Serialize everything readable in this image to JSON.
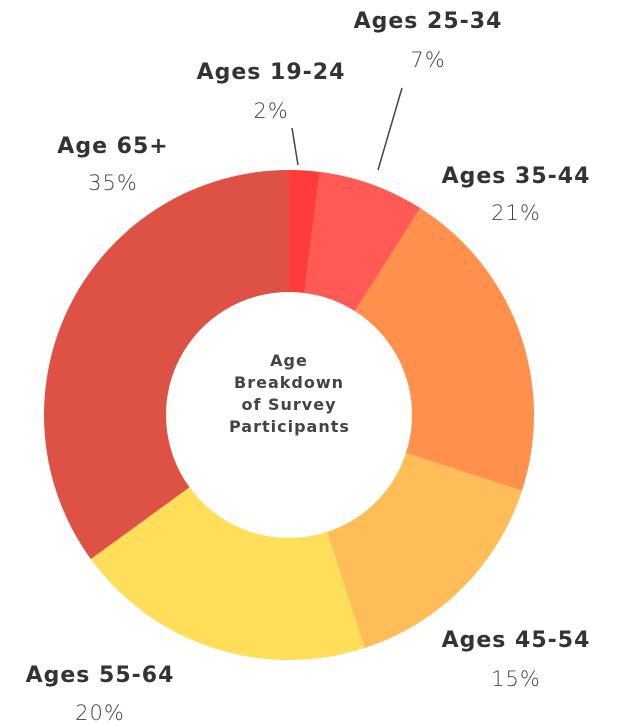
{
  "chart_data": {
    "type": "donut",
    "title": "Age Breakdown of Survey Participants",
    "categories": [
      "Ages 19-24",
      "Ages 25-34",
      "Ages 35-44",
      "Ages 45-54",
      "Ages 55-64",
      "Age 65+"
    ],
    "values": [
      2,
      7,
      21,
      15,
      20,
      35
    ],
    "value_labels": [
      "2%",
      "7%",
      "21%",
      "15%",
      "20%",
      "35%"
    ],
    "colors": [
      "#ff3b3b",
      "#ff5a55",
      "#ff914d",
      "#ffbd59",
      "#ffde59",
      "#de5246"
    ]
  }
}
